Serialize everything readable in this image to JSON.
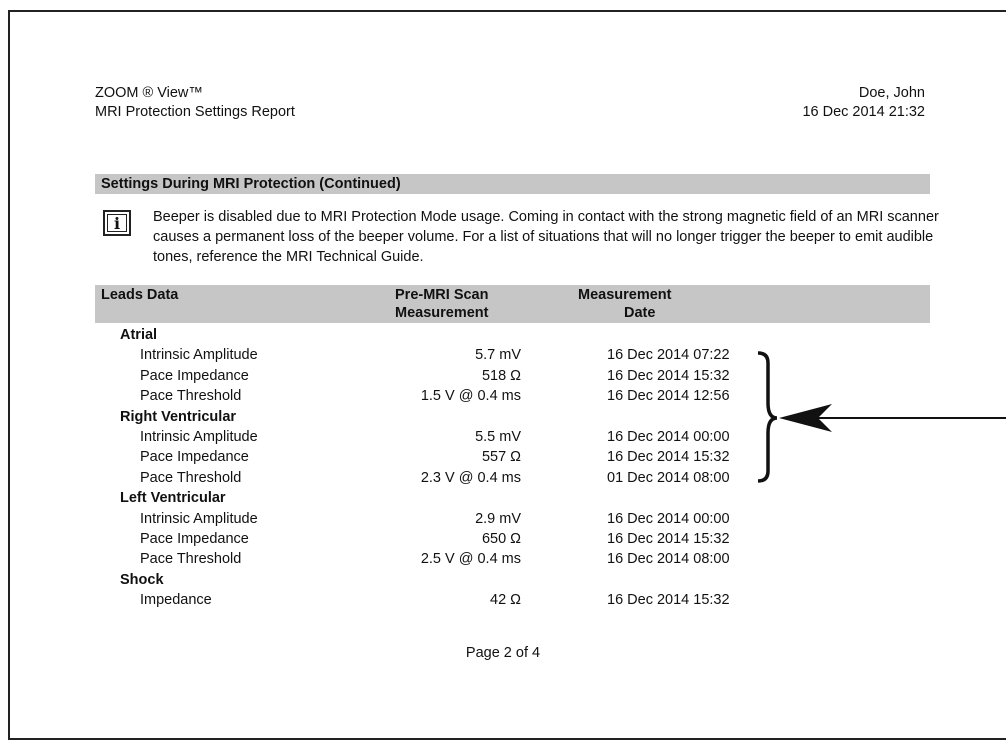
{
  "header": {
    "app_name": "ZOOM ® View™",
    "report_title": "MRI Protection Settings Report",
    "patient_name": "Doe, John",
    "report_datetime": "16 Dec 2014 21:32"
  },
  "section": {
    "title": "Settings During MRI Protection (Continued)"
  },
  "note": {
    "icon": "info-icon",
    "text": "Beeper is disabled due to MRI Protection Mode usage. Coming in contact with the strong magnetic field of an MRI scanner causes a permanent loss of the beeper volume. For a list of situations that will no longer trigger the beeper to emit audible tones, reference the MRI Technical Guide."
  },
  "table": {
    "headers": {
      "leads": "Leads Data",
      "pre_line1": "Pre-MRI Scan",
      "pre_line2": "Measurement",
      "date_line1": "Measurement",
      "date_line2": "Date"
    },
    "groups": [
      {
        "name": "Atrial",
        "rows": [
          {
            "label": "Intrinsic Amplitude",
            "value": "5.7 mV",
            "date": "16 Dec 2014 07:22"
          },
          {
            "label": "Pace Impedance",
            "value": "518 Ω",
            "date": "16 Dec 2014 15:32"
          },
          {
            "label": "Pace Threshold",
            "value": "1.5 V @ 0.4 ms",
            "date": "16 Dec 2014 12:56"
          }
        ]
      },
      {
        "name": "Right Ventricular",
        "rows": [
          {
            "label": "Intrinsic Amplitude",
            "value": "5.5 mV",
            "date": "16 Dec 2014 00:00"
          },
          {
            "label": "Pace Impedance",
            "value": "557 Ω",
            "date": "16 Dec 2014 15:32"
          },
          {
            "label": "Pace Threshold",
            "value": "2.3 V @ 0.4 ms",
            "date": "01 Dec 2014 08:00"
          }
        ]
      },
      {
        "name": "Left Ventricular",
        "rows": [
          {
            "label": "Intrinsic Amplitude",
            "value": "2.9 mV",
            "date": "16 Dec 2014 00:00"
          },
          {
            "label": "Pace Impedance",
            "value": "650 Ω",
            "date": "16 Dec 2014 15:32"
          },
          {
            "label": "Pace Threshold",
            "value": "2.5 V @ 0.4 ms",
            "date": "16 Dec 2014 08:00"
          }
        ]
      },
      {
        "name": "Shock",
        "rows": [
          {
            "label": "Impedance",
            "value": "42 Ω",
            "date": "16 Dec 2014 15:32"
          }
        ]
      }
    ]
  },
  "footer": {
    "page": "Page 2 of 4"
  }
}
